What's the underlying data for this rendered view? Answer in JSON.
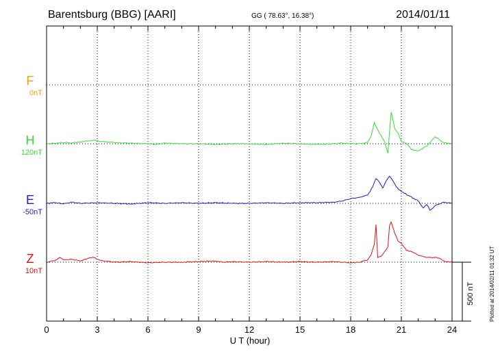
{
  "header": {
    "station": "Barentsburg (BBG)  [AARI]",
    "coords": "GG ( 78.63°,  16.38°)",
    "date": "2014/01/11"
  },
  "side_note": "Plotted at 2014/02/11 01:32 UT",
  "scale_bar": {
    "label": "500 nT",
    "value_nT": 500
  },
  "chart_data": {
    "type": "line",
    "xlabel": "U T (hour)",
    "xlim": [
      0,
      24
    ],
    "xticks": [
      0,
      3,
      6,
      9,
      12,
      15,
      18,
      21,
      24
    ],
    "xtick_labels": [
      "0",
      "3",
      "6",
      "9",
      "12",
      "15",
      "18",
      "21",
      "24"
    ],
    "grid": true,
    "series": [
      {
        "name": "F",
        "baseline_label": "0nT",
        "color": "#f5a000",
        "t": [],
        "values": []
      },
      {
        "name": "H",
        "baseline_label": "120nT",
        "color": "#33dd33",
        "t": [
          0,
          0.5,
          1,
          1.5,
          2,
          2.5,
          2.8,
          3.2,
          4,
          5,
          6,
          6.5,
          7,
          8,
          9,
          10,
          11,
          12,
          13,
          14,
          15,
          16,
          17,
          17.5,
          18,
          18.5,
          19,
          19.2,
          19.4,
          19.6,
          19.8,
          20,
          20.2,
          20.3,
          20.4,
          20.6,
          20.8,
          21,
          21.3,
          21.6,
          22,
          22.5,
          22.8,
          23,
          23.5,
          24
        ],
        "values": [
          0,
          5,
          10,
          8,
          15,
          25,
          30,
          20,
          10,
          5,
          0,
          -5,
          5,
          0,
          0,
          -5,
          0,
          0,
          -5,
          5,
          0,
          -5,
          0,
          5,
          0,
          0,
          10,
          60,
          180,
          120,
          70,
          20,
          -80,
          100,
          270,
          130,
          90,
          20,
          5,
          -50,
          -60,
          -20,
          30,
          60,
          10,
          0
        ]
      },
      {
        "name": "E",
        "baseline_label": "-50nT",
        "color": "#1a1acc",
        "t": [
          0,
          0.5,
          1,
          1.5,
          2,
          3,
          4,
          5,
          6,
          7,
          8,
          9,
          10,
          11,
          12,
          13,
          14,
          15,
          16,
          17,
          17.5,
          18,
          18.5,
          19,
          19.3,
          19.5,
          19.7,
          19.9,
          20.1,
          20.3,
          20.5,
          20.7,
          21,
          21.5,
          22,
          22.3,
          22.5,
          22.7,
          23,
          23.5,
          24
        ],
        "values": [
          0,
          5,
          -5,
          10,
          0,
          5,
          0,
          -5,
          5,
          0,
          5,
          0,
          5,
          0,
          0,
          5,
          0,
          5,
          5,
          10,
          20,
          40,
          50,
          70,
          140,
          210,
          180,
          130,
          190,
          230,
          190,
          140,
          100,
          60,
          20,
          -40,
          -10,
          -60,
          -20,
          10,
          0
        ]
      },
      {
        "name": "Z",
        "baseline_label": "10nT",
        "color": "#dd1111",
        "t": [
          0,
          0.5,
          0.8,
          1,
          1.5,
          2,
          2.5,
          2.8,
          3.2,
          4,
          5,
          6,
          7,
          8,
          9,
          10,
          10.5,
          11,
          12,
          13,
          14,
          15,
          16,
          17,
          18,
          18.5,
          19,
          19.2,
          19.4,
          19.5,
          19.6,
          19.8,
          20,
          20.2,
          20.3,
          20.4,
          20.6,
          20.8,
          21,
          21.3,
          21.6,
          22,
          22.5,
          23,
          23.3,
          23.6,
          24
        ],
        "values": [
          0,
          15,
          40,
          20,
          25,
          10,
          35,
          40,
          15,
          0,
          5,
          -5,
          0,
          0,
          5,
          10,
          0,
          5,
          0,
          5,
          0,
          5,
          0,
          5,
          -5,
          0,
          20,
          60,
          150,
          320,
          40,
          50,
          90,
          130,
          310,
          340,
          250,
          180,
          160,
          100,
          90,
          60,
          40,
          40,
          30,
          5,
          0
        ]
      }
    ]
  }
}
